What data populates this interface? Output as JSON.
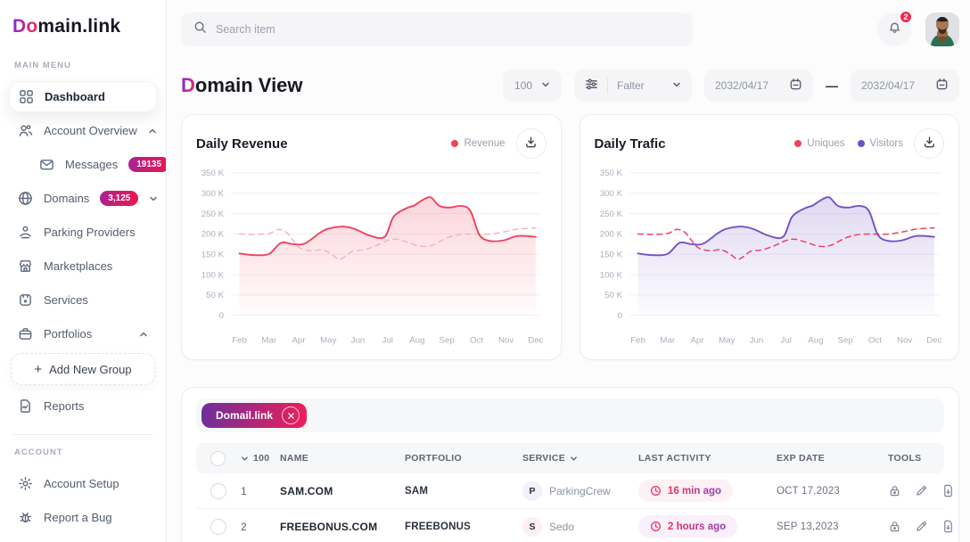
{
  "brand": {
    "logo_accent": "Do",
    "logo_rest": "main.link"
  },
  "topbar": {
    "search_placeholder": "Search item",
    "notification_count": "2"
  },
  "sidebar": {
    "main_menu_label": "MAIN MENU",
    "account_label": "ACCOUNT",
    "items": [
      {
        "label": "Dashboard"
      },
      {
        "label": "Account Overview"
      },
      {
        "label": "Messages",
        "badge": "19135"
      },
      {
        "label": "Domains",
        "badge": "3,125"
      },
      {
        "label": "Parking Providers"
      },
      {
        "label": "Marketplaces"
      },
      {
        "label": "Services"
      },
      {
        "label": "Portfolios"
      },
      {
        "label": "Add New Group",
        "prefix": "+"
      },
      {
        "label": "Reports"
      },
      {
        "label": "Account Setup"
      },
      {
        "label": "Report a Bug"
      }
    ]
  },
  "header": {
    "title_accent": "D",
    "title_rest": "omain View",
    "page_size": "100",
    "filter_label": "Falter",
    "date_from": "2032/04/17",
    "date_to": "2032/04/17",
    "date_separator": "—"
  },
  "chart_data": [
    {
      "type": "line",
      "title": "Daily Revenue",
      "x_labels": [
        "Feb",
        "Mar",
        "Apr",
        "May",
        "Jun",
        "Jul",
        "Aug",
        "Sep",
        "Oct",
        "Nov",
        "Dec"
      ],
      "y_tick_labels": [
        "350 K",
        "300 K",
        "250 K",
        "200 K",
        "150 K",
        "100 K",
        "50 K",
        "0"
      ],
      "ylim_thousands": [
        0,
        350
      ],
      "grid": true,
      "legend_position": "top-right",
      "legend": [
        {
          "label": "Revenue",
          "color": "#f0415f"
        }
      ],
      "values_unit": "thousands (K)",
      "series": [
        {
          "name": "Revenue",
          "style": "solid",
          "color": "#f0415f",
          "fill": true,
          "points": [
            [
              0,
              152
            ],
            [
              0.5,
              148
            ],
            [
              1,
              151
            ],
            [
              1.4,
              178
            ],
            [
              1.8,
              175
            ],
            [
              2.2,
              176
            ],
            [
              2.7,
              202
            ],
            [
              3,
              213
            ],
            [
              3.5,
              218
            ],
            [
              3.9,
              212
            ],
            [
              4.4,
              196
            ],
            [
              4.9,
              193
            ],
            [
              5.2,
              242
            ],
            [
              5.6,
              262
            ],
            [
              5.9,
              270
            ],
            [
              6.15,
              282
            ],
            [
              6.45,
              290
            ],
            [
              6.75,
              269
            ],
            [
              7.1,
              265
            ],
            [
              7.5,
              269
            ],
            [
              7.8,
              256
            ],
            [
              8.1,
              198
            ],
            [
              8.45,
              183
            ],
            [
              8.9,
              184
            ],
            [
              9.4,
              195
            ],
            [
              10,
              193
            ]
          ]
        },
        {
          "name": "",
          "style": "dashed",
          "color": "#f5b3c3",
          "fill": false,
          "points": [
            [
              0,
              200
            ],
            [
              0.5,
              199
            ],
            [
              1,
              201
            ],
            [
              1.3,
              211
            ],
            [
              1.6,
              203
            ],
            [
              2,
              168
            ],
            [
              2.4,
              159
            ],
            [
              2.8,
              161
            ],
            [
              3.1,
              151
            ],
            [
              3.4,
              138
            ],
            [
              3.8,
              157
            ],
            [
              4.2,
              161
            ],
            [
              4.6,
              171
            ],
            [
              5,
              184
            ],
            [
              5.3,
              187
            ],
            [
              5.7,
              179
            ],
            [
              6.1,
              170
            ],
            [
              6.5,
              172
            ],
            [
              7,
              190
            ],
            [
              7.4,
              198
            ],
            [
              7.8,
              200
            ],
            [
              8.2,
              199
            ],
            [
              8.6,
              201
            ],
            [
              9,
              206
            ],
            [
              9.4,
              212
            ],
            [
              10,
              215
            ]
          ]
        }
      ]
    },
    {
      "type": "line",
      "title": "Daily Trafic",
      "x_labels": [
        "Feb",
        "Mar",
        "Apr",
        "May",
        "Jun",
        "Jul",
        "Aug",
        "Sep",
        "Oct",
        "Nov",
        "Dec"
      ],
      "y_tick_labels": [
        "350 K",
        "300 K",
        "250 K",
        "200 K",
        "150 K",
        "100 K",
        "50 K",
        "0"
      ],
      "ylim_thousands": [
        0,
        350
      ],
      "grid": true,
      "legend_position": "top-right",
      "legend": [
        {
          "label": "Uniques",
          "color": "#ef4163"
        },
        {
          "label": "Visitors",
          "color": "#7351c5"
        }
      ],
      "values_unit": "thousands (K)",
      "series": [
        {
          "name": "Visitors",
          "style": "solid",
          "color": "#7351c5",
          "fill": true,
          "points": [
            [
              0,
              152
            ],
            [
              0.5,
              148
            ],
            [
              1,
              151
            ],
            [
              1.4,
              178
            ],
            [
              1.8,
              175
            ],
            [
              2.2,
              176
            ],
            [
              2.7,
              202
            ],
            [
              3,
              213
            ],
            [
              3.5,
              218
            ],
            [
              3.9,
              212
            ],
            [
              4.4,
              196
            ],
            [
              4.9,
              193
            ],
            [
              5.2,
              242
            ],
            [
              5.6,
              262
            ],
            [
              5.9,
              270
            ],
            [
              6.15,
              282
            ],
            [
              6.45,
              290
            ],
            [
              6.75,
              269
            ],
            [
              7.1,
              265
            ],
            [
              7.5,
              269
            ],
            [
              7.8,
              256
            ],
            [
              8.1,
              198
            ],
            [
              8.45,
              183
            ],
            [
              8.9,
              184
            ],
            [
              9.4,
              195
            ],
            [
              10,
              193
            ]
          ]
        },
        {
          "name": "Uniques",
          "style": "dashed",
          "color": "#ef4163",
          "fill": false,
          "points": [
            [
              0,
              200
            ],
            [
              0.5,
              199
            ],
            [
              1,
              201
            ],
            [
              1.3,
              211
            ],
            [
              1.6,
              203
            ],
            [
              2,
              168
            ],
            [
              2.4,
              159
            ],
            [
              2.8,
              161
            ],
            [
              3.1,
              151
            ],
            [
              3.4,
              138
            ],
            [
              3.8,
              157
            ],
            [
              4.2,
              161
            ],
            [
              4.6,
              171
            ],
            [
              5,
              184
            ],
            [
              5.3,
              187
            ],
            [
              5.7,
              179
            ],
            [
              6.1,
              170
            ],
            [
              6.5,
              172
            ],
            [
              7,
              190
            ],
            [
              7.4,
              198
            ],
            [
              7.8,
              200
            ],
            [
              8.2,
              199
            ],
            [
              8.6,
              201
            ],
            [
              9,
              206
            ],
            [
              9.4,
              212
            ],
            [
              10,
              215
            ]
          ]
        }
      ]
    }
  ],
  "table": {
    "filter_chip": "Domail.link",
    "count_header": "100",
    "columns": [
      "NAME",
      "PORTFOLIO",
      "SERVICE",
      "LAST ACTIVITY",
      "EXP DATE",
      "TOOLS"
    ],
    "rows": [
      {
        "num": "1",
        "name": "SAM.COM",
        "portfolio": "SAM",
        "service_initial": "P",
        "service": "ParkingCrew",
        "last_activity": "16 min ago",
        "exp_date": "OCT 17,2023"
      },
      {
        "num": "2",
        "name": "FREEBONUS.COM",
        "portfolio": "FREEBONUS",
        "service_initial": "S",
        "service": "Sedo",
        "last_activity": "2 hours ago",
        "exp_date": "SEP 13,2023"
      }
    ]
  },
  "colors": {
    "accent_red": "#f0415f",
    "accent_purple": "#7351c5",
    "dashed_pink": "#f5b3c3",
    "badge_gradient": [
      "#a9238f",
      "#ee164e"
    ],
    "chip_gradient": [
      "#6d2f9c",
      "#f01e57"
    ],
    "notification_red": "#ef2c4f",
    "activity_text_gradient": [
      "#ef2f55",
      "#8a3db8"
    ]
  }
}
